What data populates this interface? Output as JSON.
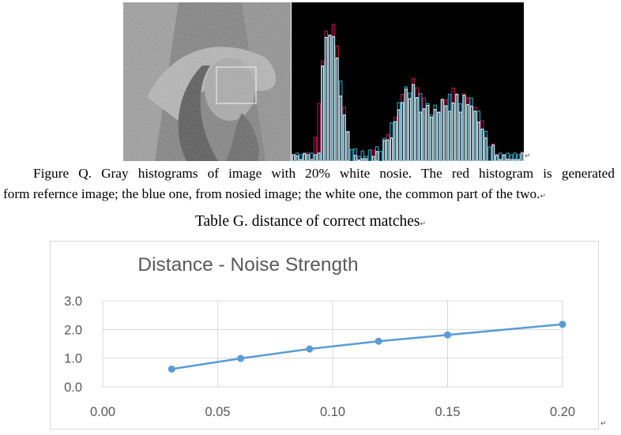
{
  "figure_q": {
    "caption_line1": "Figure Q. Gray histograms of image with 20% white nosie. The red histogram is generated",
    "caption_line2": "form refernce image; the blue one, from nosied image; the white one, the common part of the two.",
    "colors": {
      "reference": "#d4145a",
      "noisy": "#29b6d6",
      "common": "#ffffff"
    }
  },
  "table_g": {
    "caption": "Table G. distance of correct matches"
  },
  "chart_data": {
    "type": "line",
    "title": "Distance - Noise Strength",
    "xlabel": "",
    "ylabel": "",
    "x": [
      0.03,
      0.06,
      0.09,
      0.12,
      0.15,
      0.2
    ],
    "series": [
      {
        "values": [
          0.62,
          0.99,
          1.32,
          1.59,
          1.81,
          2.18
        ],
        "color": "#5b9bd5"
      }
    ],
    "xlim": [
      0,
      0.2
    ],
    "ylim": [
      0,
      3
    ],
    "xticks": [
      "0.00",
      "0.05",
      "0.10",
      "0.15",
      "0.20"
    ],
    "yticks": [
      "0.0",
      "1.0",
      "2.0",
      "3.0"
    ],
    "grid": true
  }
}
